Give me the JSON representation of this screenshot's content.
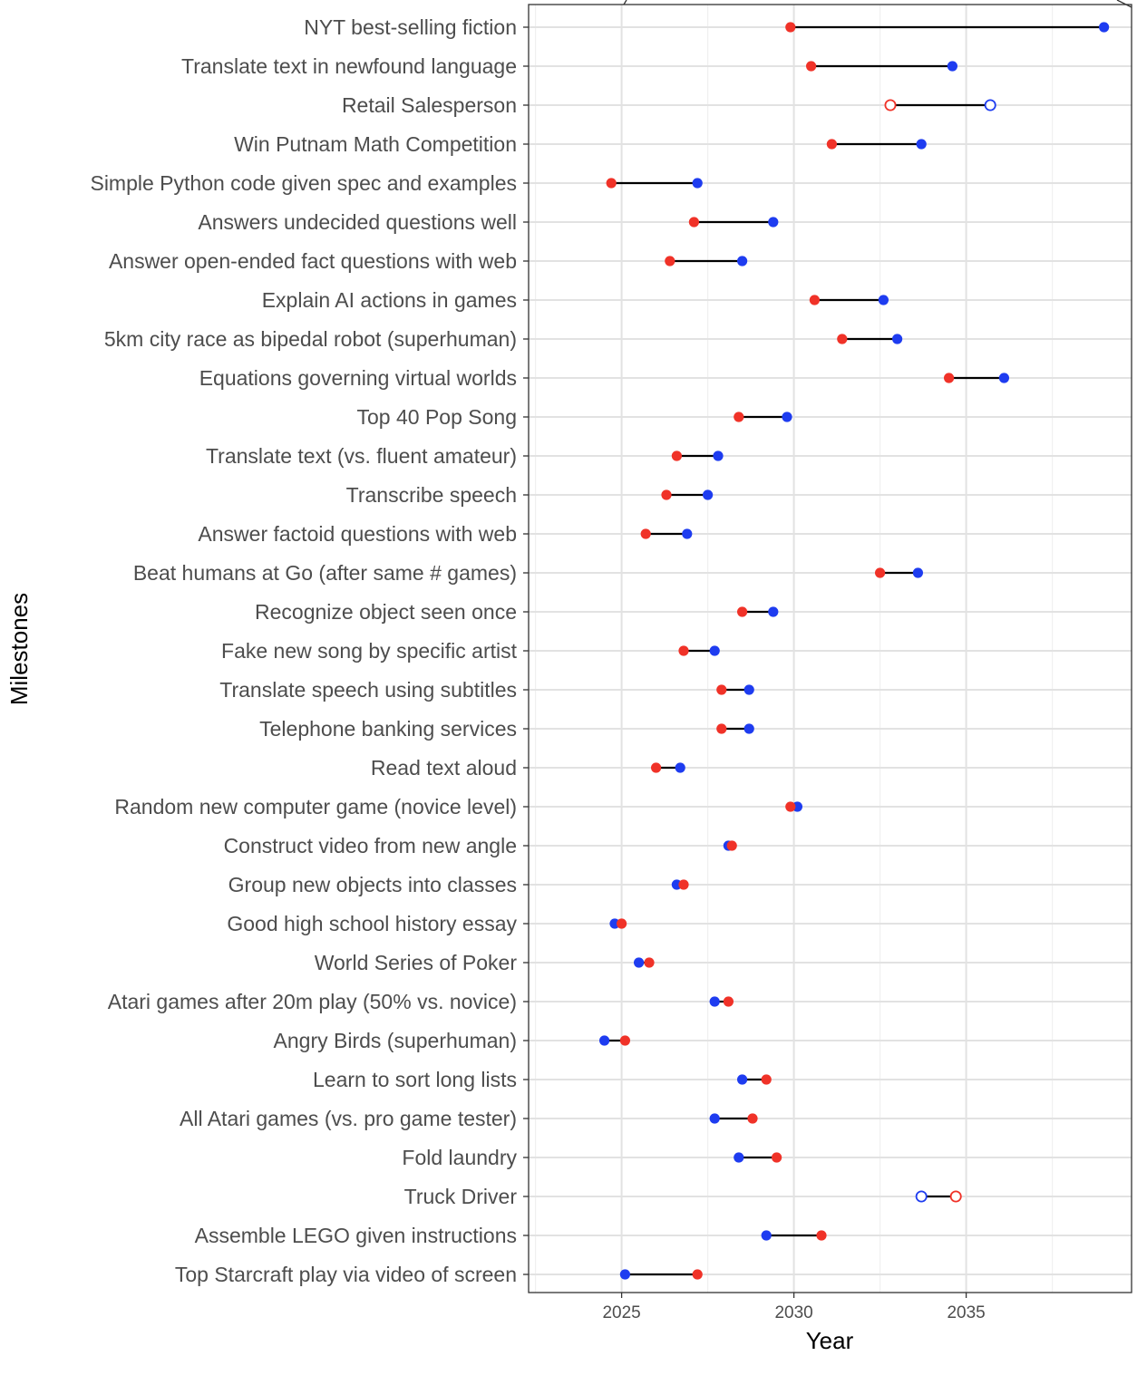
{
  "chart_data": {
    "type": "dumbbell",
    "xlabel": "Year",
    "ylabel": "Milestones",
    "xlim": [
      2022.3,
      2039.8
    ],
    "x_ticks": [
      2025,
      2030,
      2035
    ],
    "grid": true,
    "colors": {
      "red": "#f03228",
      "blue": "#1e3cf0",
      "segment": "#000000"
    },
    "milestones": [
      {
        "label": "NYT best-selling fiction",
        "red": 2029.9,
        "blue": 2039.0,
        "open": false
      },
      {
        "label": "Translate text in newfound language",
        "red": 2030.5,
        "blue": 2034.6,
        "open": false
      },
      {
        "label": "Retail Salesperson",
        "red": 2032.8,
        "blue": 2035.7,
        "open": true
      },
      {
        "label": "Win Putnam Math Competition",
        "red": 2031.1,
        "blue": 2033.7,
        "open": false
      },
      {
        "label": "Simple Python code given spec and examples",
        "red": 2024.7,
        "blue": 2027.2,
        "open": false
      },
      {
        "label": "Answers undecided questions well",
        "red": 2027.1,
        "blue": 2029.4,
        "open": false
      },
      {
        "label": "Answer open-ended fact questions with web",
        "red": 2026.4,
        "blue": 2028.5,
        "open": false
      },
      {
        "label": "Explain AI actions in games",
        "red": 2030.6,
        "blue": 2032.6,
        "open": false
      },
      {
        "label": "5km city race as bipedal robot (superhuman)",
        "red": 2031.4,
        "blue": 2033.0,
        "open": false
      },
      {
        "label": "Equations governing virtual worlds",
        "red": 2034.5,
        "blue": 2036.1,
        "open": false
      },
      {
        "label": "Top 40 Pop Song",
        "red": 2028.4,
        "blue": 2029.8,
        "open": false
      },
      {
        "label": "Translate text (vs. fluent amateur)",
        "red": 2026.6,
        "blue": 2027.8,
        "open": false
      },
      {
        "label": "Transcribe speech",
        "red": 2026.3,
        "blue": 2027.5,
        "open": false
      },
      {
        "label": "Answer factoid questions with web",
        "red": 2025.7,
        "blue": 2026.9,
        "open": false
      },
      {
        "label": "Beat humans at Go (after same # games)",
        "red": 2032.5,
        "blue": 2033.6,
        "open": false
      },
      {
        "label": "Recognize object seen once",
        "red": 2028.5,
        "blue": 2029.4,
        "open": false
      },
      {
        "label": "Fake new song by specific artist",
        "red": 2026.8,
        "blue": 2027.7,
        "open": false
      },
      {
        "label": "Translate speech using subtitles",
        "red": 2027.9,
        "blue": 2028.7,
        "open": false
      },
      {
        "label": "Telephone banking services",
        "red": 2027.9,
        "blue": 2028.7,
        "open": false
      },
      {
        "label": "Read text aloud",
        "red": 2026.0,
        "blue": 2026.7,
        "open": false
      },
      {
        "label": "Random new computer game (novice level)",
        "red": 2029.9,
        "blue": 2030.1,
        "open": false
      },
      {
        "label": "Construct video from new angle",
        "red": 2028.2,
        "blue": 2028.1,
        "open": false
      },
      {
        "label": "Group new objects into classes",
        "red": 2026.8,
        "blue": 2026.6,
        "open": false
      },
      {
        "label": "Good high school history essay",
        "red": 2025.0,
        "blue": 2024.8,
        "open": false
      },
      {
        "label": "World Series of Poker",
        "red": 2025.8,
        "blue": 2025.5,
        "open": false
      },
      {
        "label": "Atari games after 20m play (50% vs. novice)",
        "red": 2028.1,
        "blue": 2027.7,
        "open": false
      },
      {
        "label": "Angry Birds (superhuman)",
        "red": 2025.1,
        "blue": 2024.5,
        "open": false
      },
      {
        "label": "Learn to sort long lists",
        "red": 2029.2,
        "blue": 2028.5,
        "open": false
      },
      {
        "label": "All Atari games (vs. pro game tester)",
        "red": 2028.8,
        "blue": 2027.7,
        "open": false
      },
      {
        "label": "Fold laundry",
        "red": 2029.5,
        "blue": 2028.4,
        "open": false
      },
      {
        "label": "Truck Driver",
        "red": 2034.7,
        "blue": 2033.7,
        "open": true
      },
      {
        "label": "Assemble LEGO given instructions",
        "red": 2030.8,
        "blue": 2029.2,
        "open": false
      },
      {
        "label": "Top Starcraft play via video of screen",
        "red": 2027.2,
        "blue": 2025.1,
        "open": false
      }
    ]
  }
}
